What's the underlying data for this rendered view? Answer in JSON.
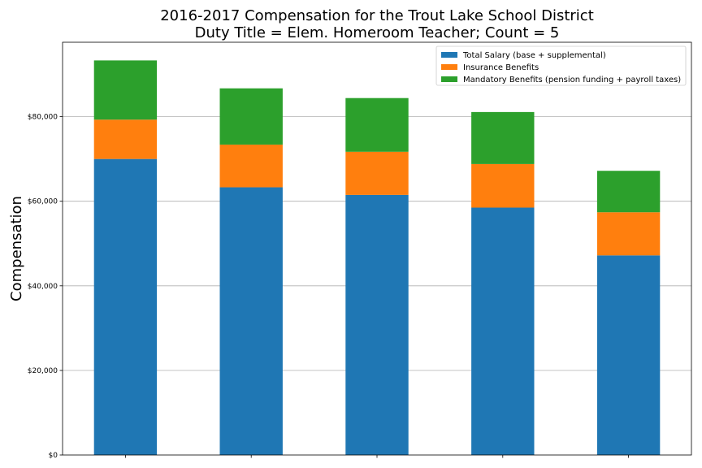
{
  "chart_data": {
    "type": "bar",
    "stacked": true,
    "title": "2016-2017 Compensation for the Trout Lake School District",
    "subtitle": "Duty Title = Elem. Homeroom Teacher; Count = 5",
    "xlabel": "",
    "ylabel": "Compensation",
    "ylim": [
      0,
      97600
    ],
    "yticks": [
      0,
      20000,
      40000,
      60000,
      80000
    ],
    "ytick_labels": [
      "$0",
      "$20,000",
      "$40,000",
      "$60,000",
      "$80,000"
    ],
    "grid": "horizontal",
    "legend_position": "top-right",
    "categories": [
      "",
      "",
      "",
      "",
      ""
    ],
    "series": [
      {
        "name": "Total Salary (base + supplemental)",
        "color": "#1f77b4",
        "values": [
          70000,
          63300,
          61500,
          58500,
          47200
        ]
      },
      {
        "name": "Insurance Benefits",
        "color": "#ff7f0e",
        "values": [
          9300,
          10100,
          10200,
          10300,
          10200
        ]
      },
      {
        "name": "Mandatory Benefits (pension funding + payroll taxes)",
        "color": "#2ca02c",
        "values": [
          14000,
          13300,
          12700,
          12300,
          9800
        ]
      }
    ]
  }
}
